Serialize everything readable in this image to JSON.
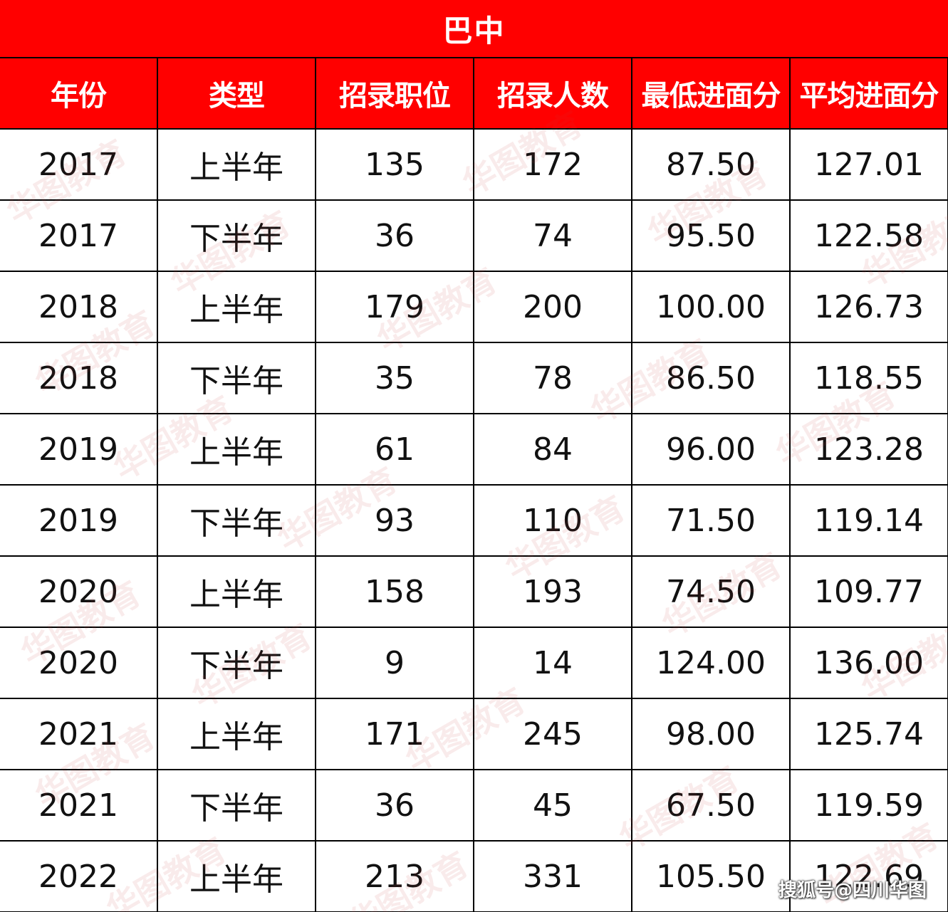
{
  "title": "巴中",
  "headers": [
    "年份",
    "类型",
    "招录职位",
    "招录人数",
    "最低进面分",
    "平均进面分"
  ],
  "rows": [
    [
      "2017",
      "上半年",
      "135",
      "172",
      "87.50",
      "127.01"
    ],
    [
      "2017",
      "下半年",
      "36",
      "74",
      "95.50",
      "122.58"
    ],
    [
      "2018",
      "上半年",
      "179",
      "200",
      "100.00",
      "126.73"
    ],
    [
      "2018",
      "下半年",
      "35",
      "78",
      "86.50",
      "118.55"
    ],
    [
      "2019",
      "上半年",
      "61",
      "84",
      "96.00",
      "123.28"
    ],
    [
      "2019",
      "下半年",
      "93",
      "110",
      "71.50",
      "119.14"
    ],
    [
      "2020",
      "上半年",
      "158",
      "193",
      "74.50",
      "109.77"
    ],
    [
      "2020",
      "下半年",
      "9",
      "14",
      "124.00",
      "136.00"
    ],
    [
      "2021",
      "上半年",
      "171",
      "245",
      "98.00",
      "125.74"
    ],
    [
      "2021",
      "下半年",
      "36",
      "45",
      "67.50",
      "119.59"
    ],
    [
      "2022",
      "上半年",
      "213",
      "331",
      "105.50",
      "122.69"
    ]
  ],
  "watermark": "华图教育",
  "source_label": "搜狐号@四川华图",
  "colors": {
    "header_bg": "#ff0000",
    "header_text": "#ffffff",
    "grid": "#000000"
  }
}
